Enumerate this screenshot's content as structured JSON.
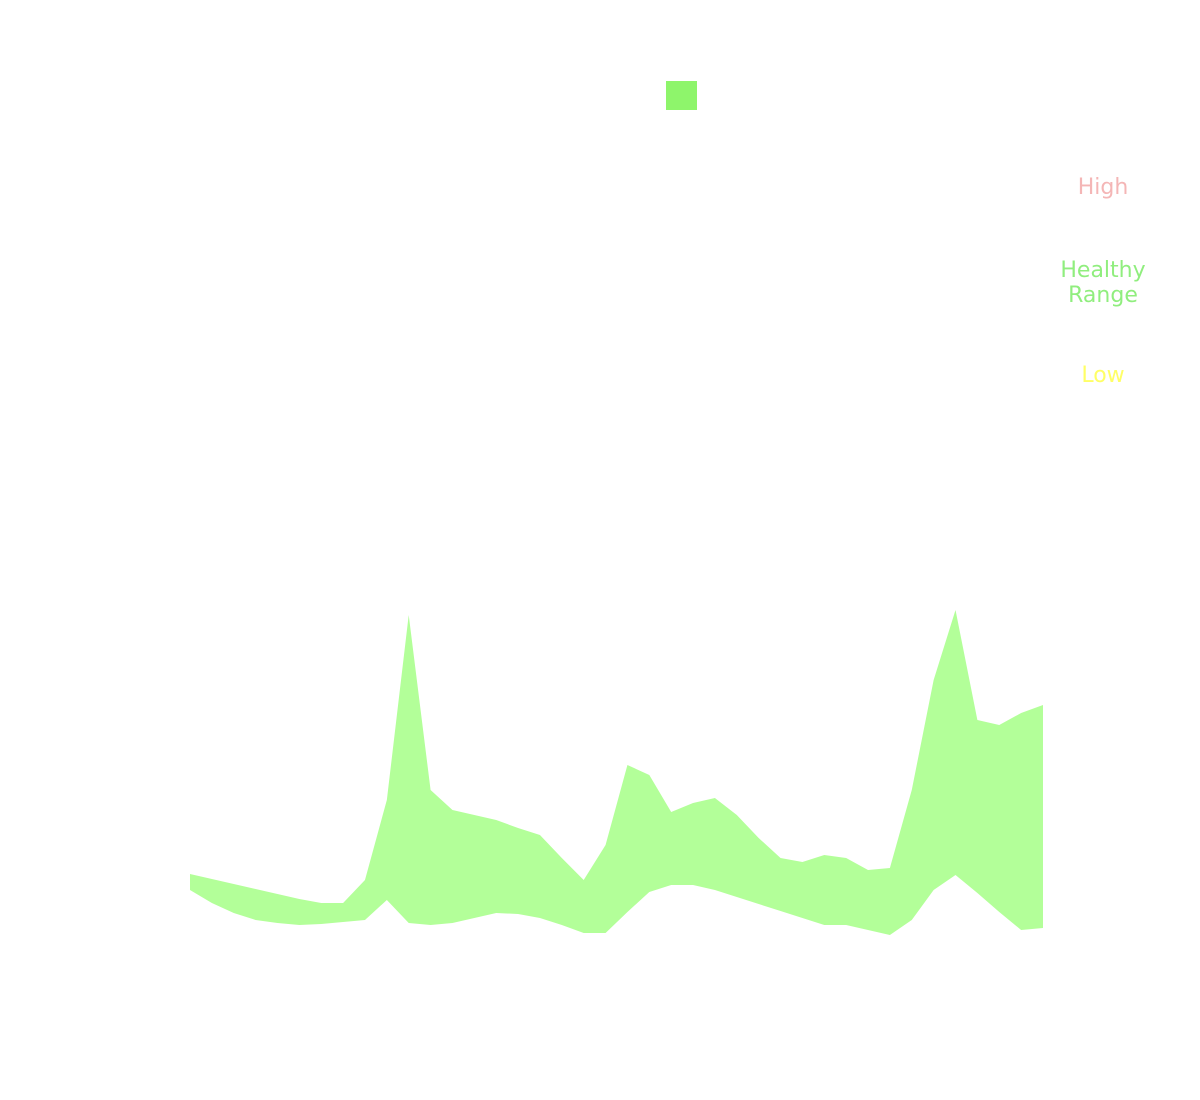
{
  "chart_data": {
    "type": "rangeArea",
    "categories": [
      null,
      null,
      null,
      null,
      null,
      null,
      null,
      null,
      null,
      null,
      null,
      null,
      null,
      null,
      null,
      null,
      null,
      null,
      null,
      null,
      null,
      null,
      null,
      null,
      null,
      null,
      null,
      null,
      null,
      null,
      null,
      null,
      null,
      null,
      null,
      null,
      null,
      null,
      null,
      null
    ],
    "series": [
      {
        "color": "#b3ff99",
        "legend_color": "#8ef56b",
        "upper": [
          12.6,
          12.1,
          11.6,
          11.1,
          10.6,
          10.1,
          9.7,
          9.7,
          12,
          20,
          38.5,
          21,
          19,
          18.5,
          18,
          17.2,
          16.5,
          14.2,
          12,
          15.5,
          23.5,
          22.5,
          18.8,
          19.7,
          20.2,
          18.5,
          16.2,
          14.2,
          13.8,
          14.5,
          14.2,
          13,
          13.2,
          21,
          32,
          39,
          28,
          27.5,
          28.7,
          29.5
        ],
        "lower": [
          11,
          9.7,
          8.7,
          8,
          7.7,
          7.5,
          7.6,
          7.8,
          8,
          10,
          7.7,
          7.5,
          7.7,
          8.2,
          8.7,
          8.6,
          8.2,
          7.5,
          6.7,
          6.7,
          8.8,
          10.8,
          11.5,
          11.5,
          11,
          10.3,
          9.6,
          8.9,
          8.2,
          7.5,
          7.5,
          7,
          6.5,
          8,
          11,
          12.5,
          10.7,
          8.8,
          7,
          7.2
        ]
      }
    ],
    "ylim": [
      0,
      45
    ],
    "annotations": [
      {
        "text": "High",
        "color": "#f4b6b6"
      },
      {
        "text": "Healthy Range",
        "color": "#90ee7e"
      },
      {
        "text": "Low",
        "color": "#ffff66"
      }
    ]
  }
}
